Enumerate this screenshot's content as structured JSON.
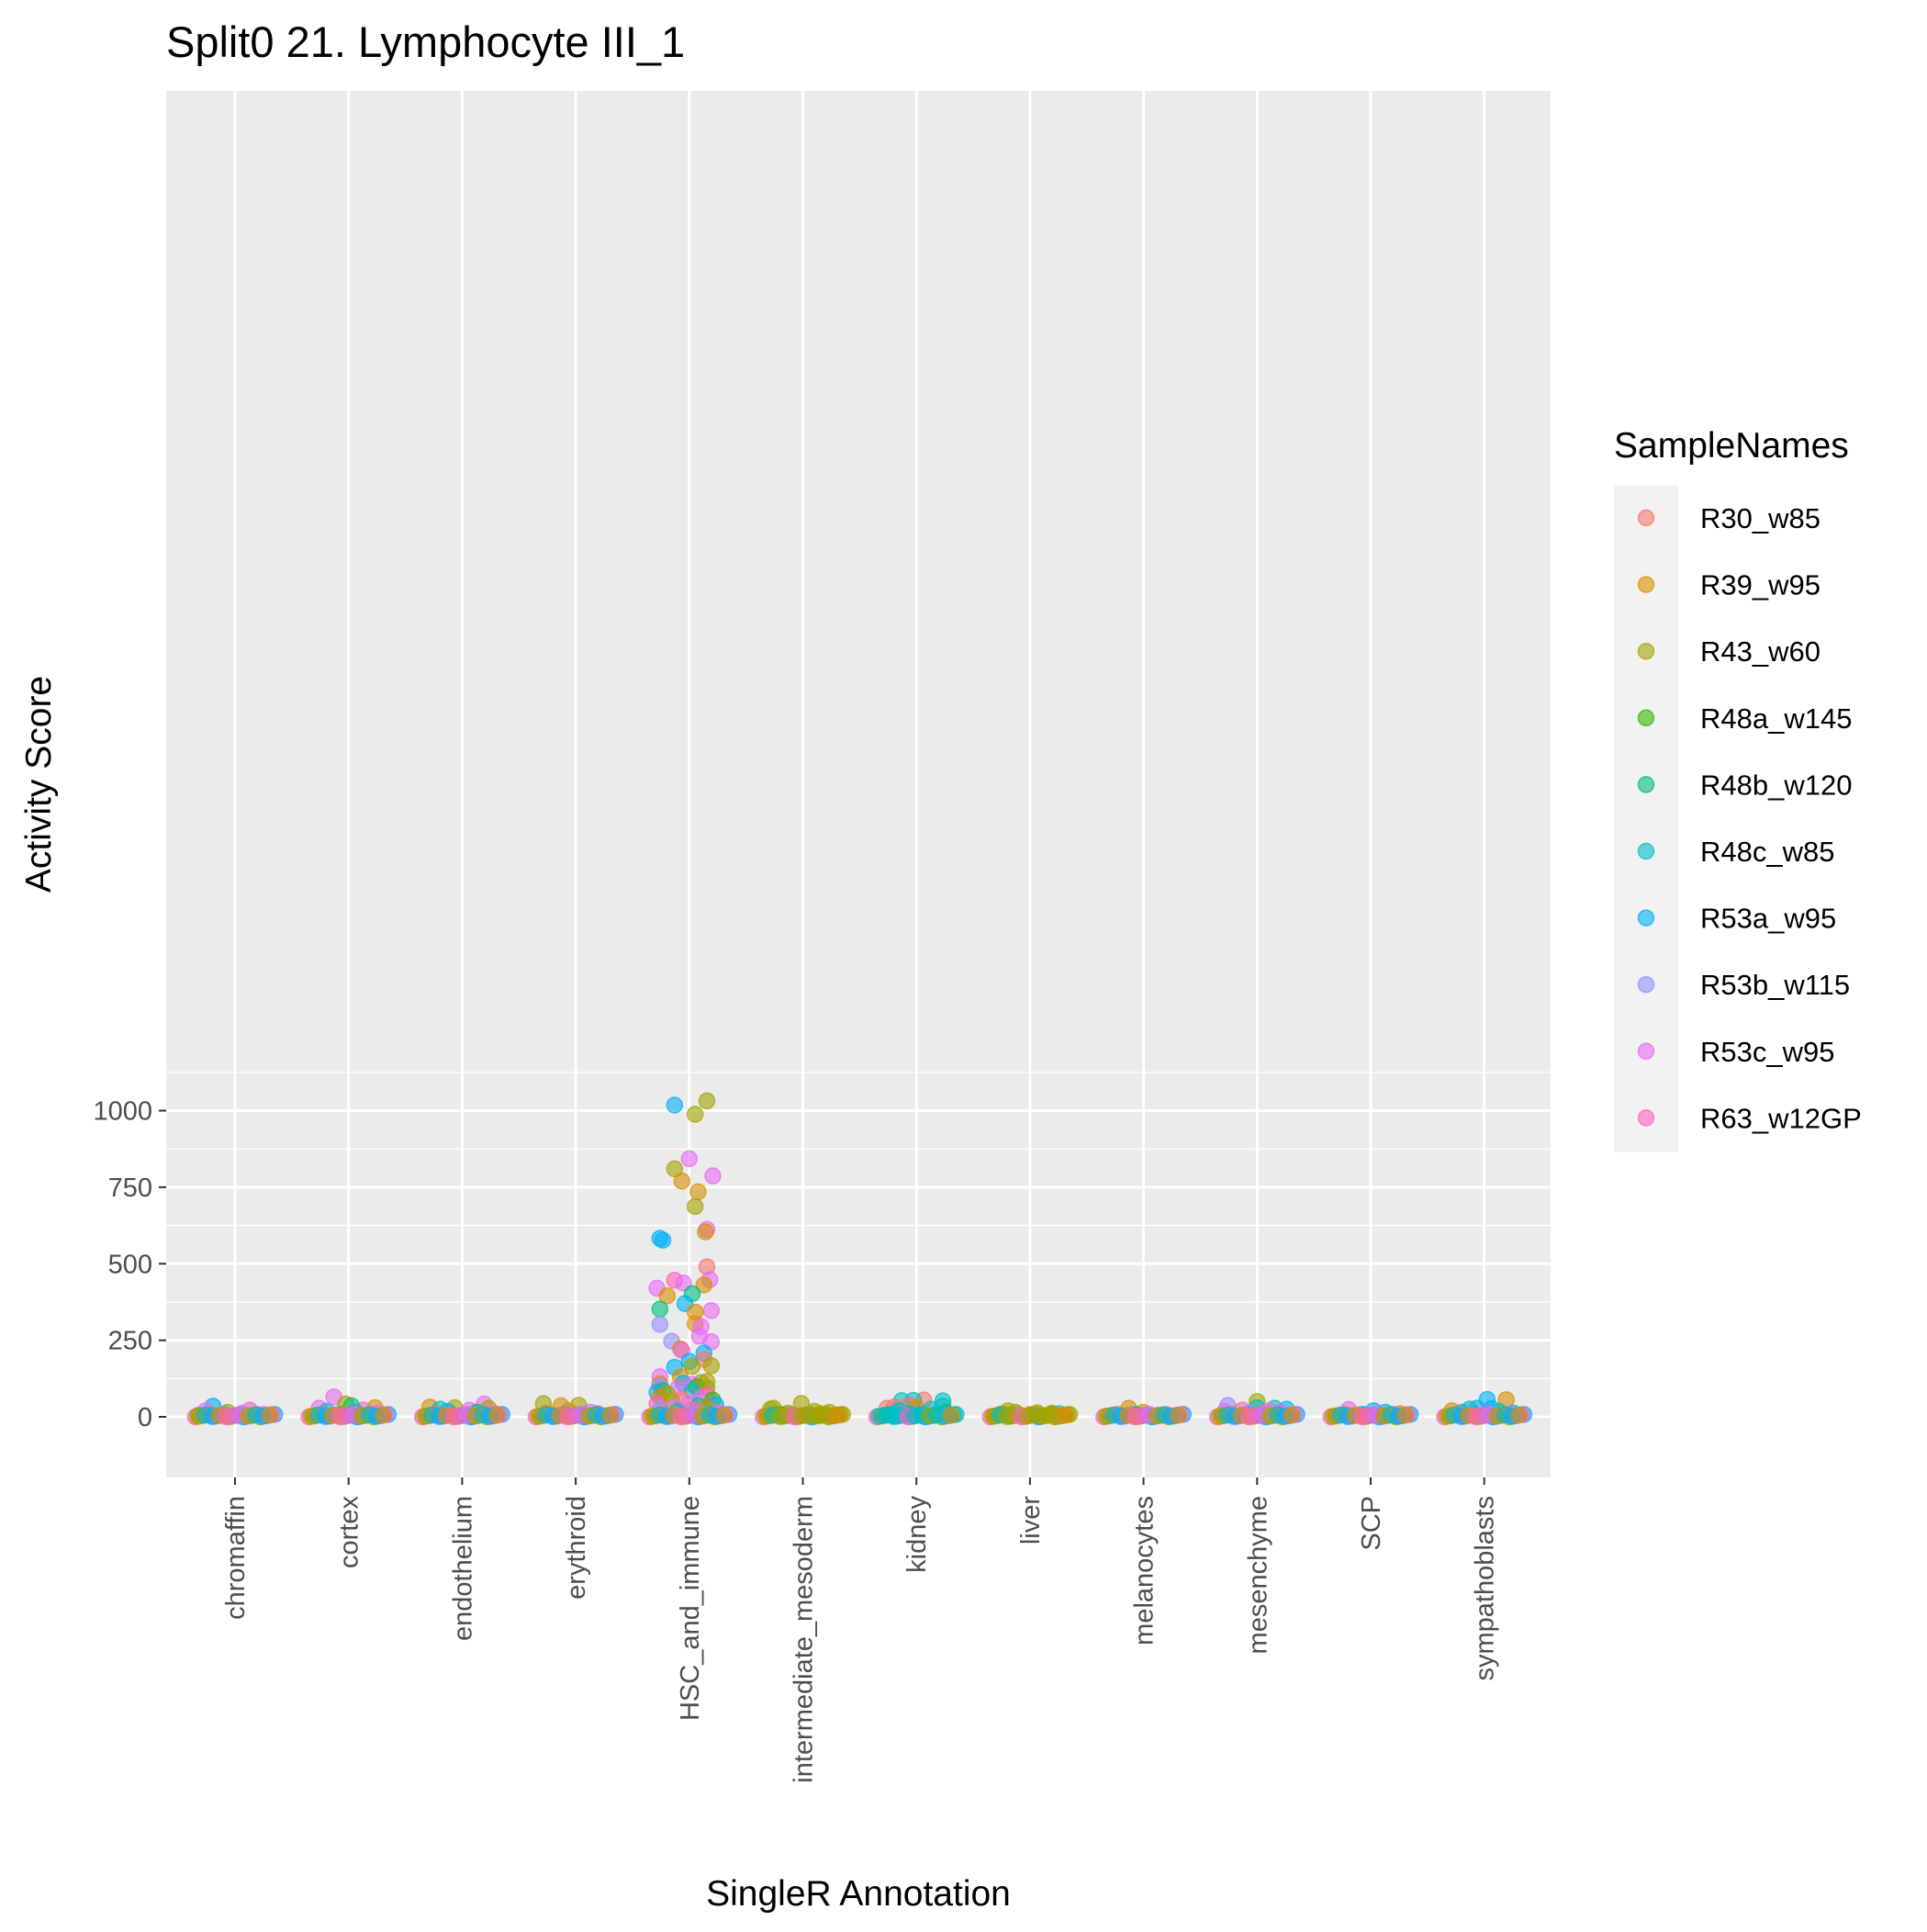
{
  "chart_data": {
    "type": "scatter",
    "subtype": "jitter-strip over boxplot",
    "title": "Split0 21. Lymphocyte III_1",
    "xlabel": "SingleR Annotation",
    "ylabel": "Activity Score",
    "ylim": [
      -50,
      1080
    ],
    "yticks": [
      0,
      250,
      500,
      750,
      1000
    ],
    "ytick_labels": [
      "0",
      "250",
      "500",
      "750",
      "1000"
    ],
    "grid": true,
    "background": "#ebebeb",
    "categories": [
      "chromaffin",
      "cortex",
      "endothelium",
      "erythroid",
      "HSC_and_immune",
      "intermediate_mesoderm",
      "kidney",
      "liver",
      "melanocytes",
      "mesenchyme",
      "SCP",
      "sympathoblasts"
    ],
    "legend": {
      "title": "SampleNames",
      "placement": "right",
      "entries": [
        {
          "name": "R30_w85",
          "color": "#F8766D"
        },
        {
          "name": "R39_w95",
          "color": "#D89000"
        },
        {
          "name": "R43_w60",
          "color": "#A3A500"
        },
        {
          "name": "R48a_w145",
          "color": "#39B600"
        },
        {
          "name": "R48b_w120",
          "color": "#00BF7D"
        },
        {
          "name": "R48c_w85",
          "color": "#00BFC4"
        },
        {
          "name": "R53a_w95",
          "color": "#00B0F6"
        },
        {
          "name": "R53b_w115",
          "color": "#9590FF"
        },
        {
          "name": "R53c_w95",
          "color": "#E76BF3"
        },
        {
          "name": "R63_w12GP",
          "color": "#FF62BC"
        }
      ]
    },
    "medians": [
      0,
      0,
      0,
      0,
      0,
      0,
      0,
      0,
      0,
      0,
      0,
      0
    ],
    "points": [
      {
        "cat": "chromaffin",
        "dx": -0.15,
        "y": 35,
        "s": "R53a_w95"
      },
      {
        "cat": "chromaffin",
        "dx": 0.1,
        "y": 22,
        "s": "R63_w12GP"
      },
      {
        "cat": "chromaffin",
        "dx": -0.2,
        "y": 20,
        "s": "R53c_w95"
      },
      {
        "cat": "chromaffin",
        "dx": -0.05,
        "y": 15,
        "s": "R43_w60"
      },
      {
        "cat": "chromaffin",
        "dx": 0.2,
        "y": 8,
        "s": "R53c_w95"
      },
      {
        "cat": "chromaffin",
        "dx": -0.25,
        "y": 5,
        "s": "R48c_w85"
      },
      {
        "cat": "chromaffin",
        "dx": 0.05,
        "y": 12,
        "s": "R53b_w115"
      },
      {
        "cat": "cortex",
        "dx": -0.1,
        "y": 65,
        "s": "R53c_w95"
      },
      {
        "cat": "cortex",
        "dx": -0.02,
        "y": 42,
        "s": "R43_w60"
      },
      {
        "cat": "cortex",
        "dx": 0.02,
        "y": 36,
        "s": "R48b_w120"
      },
      {
        "cat": "cortex",
        "dx": 0.18,
        "y": 30,
        "s": "R39_w95"
      },
      {
        "cat": "cortex",
        "dx": -0.2,
        "y": 28,
        "s": "R53c_w95"
      },
      {
        "cat": "cortex",
        "dx": 0.1,
        "y": 22,
        "s": "R63_w12GP"
      },
      {
        "cat": "cortex",
        "dx": -0.15,
        "y": 18,
        "s": "R53a_w95"
      },
      {
        "cat": "cortex",
        "dx": 0.05,
        "y": 15,
        "s": "R48c_w85"
      },
      {
        "cat": "cortex",
        "dx": 0.2,
        "y": 12,
        "s": "R53c_w95"
      },
      {
        "cat": "cortex",
        "dx": -0.05,
        "y": 10,
        "s": "R43_w60"
      },
      {
        "cat": "endothelium",
        "dx": 0.15,
        "y": 42,
        "s": "R53c_w95"
      },
      {
        "cat": "endothelium",
        "dx": -0.22,
        "y": 32,
        "s": "R39_w95"
      },
      {
        "cat": "endothelium",
        "dx": -0.05,
        "y": 30,
        "s": "R43_w60"
      },
      {
        "cat": "endothelium",
        "dx": 0.18,
        "y": 28,
        "s": "R43_w60"
      },
      {
        "cat": "endothelium",
        "dx": -0.15,
        "y": 25,
        "s": "R48c_w85"
      },
      {
        "cat": "endothelium",
        "dx": 0.05,
        "y": 22,
        "s": "R53c_w95"
      },
      {
        "cat": "endothelium",
        "dx": -0.1,
        "y": 18,
        "s": "R53a_w95"
      },
      {
        "cat": "endothelium",
        "dx": 0.1,
        "y": 15,
        "s": "R48b_w120"
      },
      {
        "cat": "endothelium",
        "dx": 0.22,
        "y": 10,
        "s": "R63_w12GP"
      },
      {
        "cat": "erythroid",
        "dx": -0.22,
        "y": 43,
        "s": "R43_w60"
      },
      {
        "cat": "erythroid",
        "dx": 0.02,
        "y": 38,
        "s": "R43_w60"
      },
      {
        "cat": "erythroid",
        "dx": -0.1,
        "y": 36,
        "s": "R39_w95"
      },
      {
        "cat": "erythroid",
        "dx": -0.05,
        "y": 20,
        "s": "R39_w95"
      },
      {
        "cat": "erythroid",
        "dx": 0.1,
        "y": 15,
        "s": "R53c_w95"
      },
      {
        "cat": "erythroid",
        "dx": -0.2,
        "y": 12,
        "s": "R39_w95"
      },
      {
        "cat": "erythroid",
        "dx": 0.15,
        "y": 10,
        "s": "R43_w60"
      },
      {
        "cat": "erythroid",
        "dx": 0.05,
        "y": 8,
        "s": "R48c_w85"
      },
      {
        "cat": "HSC_and_immune",
        "dx": 0.12,
        "y": 1032,
        "s": "R43_w60"
      },
      {
        "cat": "HSC_and_immune",
        "dx": -0.1,
        "y": 1018,
        "s": "R53a_w95"
      },
      {
        "cat": "HSC_and_immune",
        "dx": 0.04,
        "y": 988,
        "s": "R43_w60"
      },
      {
        "cat": "HSC_and_immune",
        "dx": 0.0,
        "y": 843,
        "s": "R53c_w95"
      },
      {
        "cat": "HSC_and_immune",
        "dx": -0.1,
        "y": 810,
        "s": "R43_w60"
      },
      {
        "cat": "HSC_and_immune",
        "dx": 0.16,
        "y": 787,
        "s": "R53c_w95"
      },
      {
        "cat": "HSC_and_immune",
        "dx": -0.05,
        "y": 770,
        "s": "R39_w95"
      },
      {
        "cat": "HSC_and_immune",
        "dx": 0.06,
        "y": 735,
        "s": "R39_w95"
      },
      {
        "cat": "HSC_and_immune",
        "dx": 0.04,
        "y": 687,
        "s": "R43_w60"
      },
      {
        "cat": "HSC_and_immune",
        "dx": 0.12,
        "y": 612,
        "s": "R53c_w95"
      },
      {
        "cat": "HSC_and_immune",
        "dx": 0.11,
        "y": 604,
        "s": "R39_w95"
      },
      {
        "cat": "HSC_and_immune",
        "dx": -0.2,
        "y": 583,
        "s": "R53a_w95"
      },
      {
        "cat": "HSC_and_immune",
        "dx": -0.18,
        "y": 577,
        "s": "R53a_w95"
      },
      {
        "cat": "HSC_and_immune",
        "dx": 0.12,
        "y": 490,
        "s": "R30_w85"
      },
      {
        "cat": "HSC_and_immune",
        "dx": 0.14,
        "y": 448,
        "s": "R53c_w95"
      },
      {
        "cat": "HSC_and_immune",
        "dx": -0.1,
        "y": 446,
        "s": "R63_w12GP"
      },
      {
        "cat": "HSC_and_immune",
        "dx": -0.04,
        "y": 437,
        "s": "R53c_w95"
      },
      {
        "cat": "HSC_and_immune",
        "dx": 0.1,
        "y": 431,
        "s": "R39_w95"
      },
      {
        "cat": "HSC_and_immune",
        "dx": -0.22,
        "y": 420,
        "s": "R53c_w95"
      },
      {
        "cat": "HSC_and_immune",
        "dx": 0.02,
        "y": 402,
        "s": "R48b_w120"
      },
      {
        "cat": "HSC_and_immune",
        "dx": -0.15,
        "y": 395,
        "s": "R39_w95"
      },
      {
        "cat": "HSC_and_immune",
        "dx": -0.03,
        "y": 370,
        "s": "R53a_w95"
      },
      {
        "cat": "HSC_and_immune",
        "dx": -0.2,
        "y": 352,
        "s": "R48b_w120"
      },
      {
        "cat": "HSC_and_immune",
        "dx": 0.15,
        "y": 347,
        "s": "R53c_w95"
      },
      {
        "cat": "HSC_and_immune",
        "dx": 0.04,
        "y": 342,
        "s": "R39_w95"
      },
      {
        "cat": "HSC_and_immune",
        "dx": 0.04,
        "y": 304,
        "s": "R39_w95"
      },
      {
        "cat": "HSC_and_immune",
        "dx": -0.2,
        "y": 302,
        "s": "R53b_w115"
      },
      {
        "cat": "HSC_and_immune",
        "dx": 0.08,
        "y": 295,
        "s": "R53c_w95"
      },
      {
        "cat": "HSC_and_immune",
        "dx": 0.07,
        "y": 263,
        "s": "R53c_w95"
      },
      {
        "cat": "HSC_and_immune",
        "dx": -0.12,
        "y": 247,
        "s": "R53b_w115"
      },
      {
        "cat": "HSC_and_immune",
        "dx": 0.15,
        "y": 245,
        "s": "R53c_w95"
      },
      {
        "cat": "HSC_and_immune",
        "dx": -0.06,
        "y": 222,
        "s": "R39_w95"
      },
      {
        "cat": "HSC_and_immune",
        "dx": -0.05,
        "y": 217,
        "s": "R53c_w95"
      },
      {
        "cat": "HSC_and_immune",
        "dx": 0.1,
        "y": 208,
        "s": "R53a_w95"
      },
      {
        "cat": "HSC_and_immune",
        "dx": 0.1,
        "y": 188,
        "s": "R30_w85"
      },
      {
        "cat": "HSC_and_immune",
        "dx": 0.0,
        "y": 181,
        "s": "R53a_w95"
      },
      {
        "cat": "HSC_and_immune",
        "dx": 0.15,
        "y": 167,
        "s": "R43_w60"
      },
      {
        "cat": "HSC_and_immune",
        "dx": 0.02,
        "y": 165,
        "s": "R43_w60"
      },
      {
        "cat": "HSC_and_immune",
        "dx": -0.1,
        "y": 162,
        "s": "R53a_w95"
      },
      {
        "cat": "HSC_and_immune",
        "dx": -0.2,
        "y": 131,
        "s": "R53c_w95"
      },
      {
        "cat": "HSC_and_immune",
        "dx": -0.06,
        "y": 130,
        "s": "R39_w95"
      },
      {
        "cat": "HSC_and_immune",
        "dx": 0.12,
        "y": 115,
        "s": "R43_w60"
      },
      {
        "cat": "HSC_and_immune",
        "dx": 0.08,
        "y": 112,
        "s": "R43_w60"
      },
      {
        "cat": "HSC_and_immune",
        "dx": -0.04,
        "y": 110,
        "s": "R53a_w95"
      },
      {
        "cat": "HSC_and_immune",
        "dx": -0.2,
        "y": 108,
        "s": "R39_w95"
      },
      {
        "cat": "HSC_and_immune",
        "dx": 0.02,
        "y": 106,
        "s": "R53c_w95"
      },
      {
        "cat": "HSC_and_immune",
        "dx": -0.2,
        "y": 102,
        "s": "R53b_w115"
      },
      {
        "cat": "HSC_and_immune",
        "dx": 0.05,
        "y": 98,
        "s": "R48a_w145"
      },
      {
        "cat": "HSC_and_immune",
        "dx": 0.12,
        "y": 95,
        "s": "R43_w60"
      },
      {
        "cat": "HSC_and_immune",
        "dx": -0.08,
        "y": 92,
        "s": "R53c_w95"
      },
      {
        "cat": "HSC_and_immune",
        "dx": -0.18,
        "y": 85,
        "s": "R48b_w120"
      },
      {
        "cat": "HSC_and_immune",
        "dx": 0.02,
        "y": 84,
        "s": "R48c_w85"
      },
      {
        "cat": "HSC_and_immune",
        "dx": -0.22,
        "y": 80,
        "s": "R53a_w95"
      },
      {
        "cat": "HSC_and_immune",
        "dx": -0.15,
        "y": 75,
        "s": "R43_w60"
      },
      {
        "cat": "HSC_and_immune",
        "dx": 0.12,
        "y": 74,
        "s": "R63_w12GP"
      },
      {
        "cat": "HSC_and_immune",
        "dx": -0.2,
        "y": 65,
        "s": "R39_w95"
      },
      {
        "cat": "HSC_and_immune",
        "dx": 0.08,
        "y": 62,
        "s": "R53c_w95"
      },
      {
        "cat": "HSC_and_immune",
        "dx": -0.05,
        "y": 58,
        "s": "R30_w85"
      },
      {
        "cat": "HSC_and_immune",
        "dx": 0.16,
        "y": 55,
        "s": "R48a_w145"
      },
      {
        "cat": "HSC_and_immune",
        "dx": -0.12,
        "y": 50,
        "s": "R43_w60"
      },
      {
        "cat": "HSC_and_immune",
        "dx": 0.0,
        "y": 46,
        "s": "R53c_w95"
      },
      {
        "cat": "HSC_and_immune",
        "dx": -0.22,
        "y": 43,
        "s": "R63_w12GP"
      },
      {
        "cat": "HSC_and_immune",
        "dx": 0.18,
        "y": 40,
        "s": "R53a_w95"
      },
      {
        "cat": "HSC_and_immune",
        "dx": 0.06,
        "y": 36,
        "s": "R48b_w120"
      },
      {
        "cat": "HSC_and_immune",
        "dx": -0.1,
        "y": 32,
        "s": "R53c_w95"
      },
      {
        "cat": "HSC_and_immune",
        "dx": 0.12,
        "y": 28,
        "s": "R39_w95"
      },
      {
        "cat": "HSC_and_immune",
        "dx": -0.2,
        "y": 25,
        "s": "R53b_w115"
      },
      {
        "cat": "HSC_and_immune",
        "dx": 0.02,
        "y": 22,
        "s": "R63_w12GP"
      },
      {
        "cat": "HSC_and_immune",
        "dx": -0.08,
        "y": 18,
        "s": "R48c_w85"
      },
      {
        "cat": "HSC_and_immune",
        "dx": 0.2,
        "y": 14,
        "s": "R53c_w95"
      },
      {
        "cat": "intermediate_mesoderm",
        "dx": -0.01,
        "y": 44,
        "s": "R43_w60"
      },
      {
        "cat": "intermediate_mesoderm",
        "dx": -0.2,
        "y": 28,
        "s": "R43_w60"
      },
      {
        "cat": "intermediate_mesoderm",
        "dx": -0.22,
        "y": 25,
        "s": "R43_w60"
      },
      {
        "cat": "intermediate_mesoderm",
        "dx": 0.08,
        "y": 18,
        "s": "R43_w60"
      },
      {
        "cat": "intermediate_mesoderm",
        "dx": 0.18,
        "y": 15,
        "s": "R43_w60"
      },
      {
        "cat": "intermediate_mesoderm",
        "dx": -0.1,
        "y": 12,
        "s": "R43_w60"
      },
      {
        "cat": "intermediate_mesoderm",
        "dx": 0.12,
        "y": 10,
        "s": "R43_w60"
      },
      {
        "cat": "intermediate_mesoderm",
        "dx": -0.15,
        "y": 8,
        "s": "R48a_w145"
      },
      {
        "cat": "intermediate_mesoderm",
        "dx": 0.05,
        "y": 6,
        "s": "R43_w60"
      },
      {
        "cat": "kidney",
        "dx": 0.05,
        "y": 55,
        "s": "R30_w85"
      },
      {
        "cat": "kidney",
        "dx": -0.1,
        "y": 53,
        "s": "R48c_w85"
      },
      {
        "cat": "kidney",
        "dx": -0.02,
        "y": 54,
        "s": "R48c_w85"
      },
      {
        "cat": "kidney",
        "dx": 0.18,
        "y": 52,
        "s": "R48c_w85"
      },
      {
        "cat": "kidney",
        "dx": -0.05,
        "y": 38,
        "s": "R30_w85"
      },
      {
        "cat": "kidney",
        "dx": -0.15,
        "y": 33,
        "s": "R30_w85"
      },
      {
        "cat": "kidney",
        "dx": 0.0,
        "y": 30,
        "s": "R39_w95"
      },
      {
        "cat": "kidney",
        "dx": -0.2,
        "y": 28,
        "s": "R30_w85"
      },
      {
        "cat": "kidney",
        "dx": 0.18,
        "y": 35,
        "s": "R48c_w85"
      },
      {
        "cat": "kidney",
        "dx": 0.1,
        "y": 25,
        "s": "R48c_w85"
      },
      {
        "cat": "kidney",
        "dx": -0.12,
        "y": 20,
        "s": "R48c_w85"
      },
      {
        "cat": "kidney",
        "dx": 0.2,
        "y": 15,
        "s": "R48b_w120"
      },
      {
        "cat": "kidney",
        "dx": -0.05,
        "y": 10,
        "s": "R48c_w85"
      },
      {
        "cat": "liver",
        "dx": -0.15,
        "y": 20,
        "s": "R43_w60"
      },
      {
        "cat": "liver",
        "dx": -0.1,
        "y": 15,
        "s": "R43_w60"
      },
      {
        "cat": "liver",
        "dx": 0.05,
        "y": 13,
        "s": "R43_w60"
      },
      {
        "cat": "liver",
        "dx": 0.15,
        "y": 12,
        "s": "R43_w60"
      },
      {
        "cat": "liver",
        "dx": 0.2,
        "y": 10,
        "s": "R48c_w85"
      },
      {
        "cat": "liver",
        "dx": -0.2,
        "y": 9,
        "s": "R43_w60"
      },
      {
        "cat": "liver",
        "dx": 0.0,
        "y": 8,
        "s": "R43_w60"
      },
      {
        "cat": "melanocytes",
        "dx": -0.1,
        "y": 28,
        "s": "R39_w95"
      },
      {
        "cat": "melanocytes",
        "dx": 0.0,
        "y": 15,
        "s": "R39_w95"
      },
      {
        "cat": "melanocytes",
        "dx": -0.05,
        "y": 8,
        "s": "R48a_w145"
      },
      {
        "cat": "melanocytes",
        "dx": 0.1,
        "y": 5,
        "s": "R48b_w120"
      },
      {
        "cat": "melanocytes",
        "dx": 0.2,
        "y": 3,
        "s": "R39_w95"
      },
      {
        "cat": "mesenchyme",
        "dx": 0.0,
        "y": 50,
        "s": "R43_w60"
      },
      {
        "cat": "mesenchyme",
        "dx": -0.2,
        "y": 37,
        "s": "R53b_w115"
      },
      {
        "cat": "mesenchyme",
        "dx": 0.0,
        "y": 30,
        "s": "R48c_w85"
      },
      {
        "cat": "mesenchyme",
        "dx": 0.12,
        "y": 28,
        "s": "R48c_w85"
      },
      {
        "cat": "mesenchyme",
        "dx": 0.2,
        "y": 25,
        "s": "R53a_w95"
      },
      {
        "cat": "mesenchyme",
        "dx": -0.1,
        "y": 22,
        "s": "R63_w12GP"
      },
      {
        "cat": "mesenchyme",
        "dx": 0.08,
        "y": 20,
        "s": "R53c_w95"
      },
      {
        "cat": "mesenchyme",
        "dx": -0.22,
        "y": 18,
        "s": "R53c_w95"
      },
      {
        "cat": "mesenchyme",
        "dx": 0.16,
        "y": 15,
        "s": "R53c_w95"
      },
      {
        "cat": "mesenchyme",
        "dx": -0.05,
        "y": 12,
        "s": "R53b_w115"
      },
      {
        "cat": "mesenchyme",
        "dx": 0.05,
        "y": 10,
        "s": "R30_w85"
      },
      {
        "cat": "SCP",
        "dx": -0.15,
        "y": 24,
        "s": "R53c_w95"
      },
      {
        "cat": "SCP",
        "dx": 0.02,
        "y": 20,
        "s": "R53a_w95"
      },
      {
        "cat": "SCP",
        "dx": 0.1,
        "y": 15,
        "s": "R53a_w95"
      },
      {
        "cat": "SCP",
        "dx": 0.2,
        "y": 10,
        "s": "R39_w95"
      },
      {
        "cat": "SCP",
        "dx": -0.05,
        "y": 8,
        "s": "R53a_w95"
      },
      {
        "cat": "SCP",
        "dx": 0.15,
        "y": 5,
        "s": "R53c_w95"
      },
      {
        "cat": "sympathoblasts",
        "dx": 0.15,
        "y": 56,
        "s": "R39_w95"
      },
      {
        "cat": "sympathoblasts",
        "dx": 0.02,
        "y": 57,
        "s": "R53a_w95"
      },
      {
        "cat": "sympathoblasts",
        "dx": -0.05,
        "y": 28,
        "s": "R53a_w95"
      },
      {
        "cat": "sympathoblasts",
        "dx": 0.05,
        "y": 27,
        "s": "R53a_w95"
      },
      {
        "cat": "sympathoblasts",
        "dx": -0.1,
        "y": 25,
        "s": "R48c_w85"
      },
      {
        "cat": "sympathoblasts",
        "dx": -0.22,
        "y": 20,
        "s": "R39_w95"
      },
      {
        "cat": "sympathoblasts",
        "dx": 0.1,
        "y": 18,
        "s": "R48c_w85"
      },
      {
        "cat": "sympathoblasts",
        "dx": -0.15,
        "y": 15,
        "s": "R53a_w95"
      },
      {
        "cat": "sympathoblasts",
        "dx": 0.2,
        "y": 12,
        "s": "R53a_w95"
      },
      {
        "cat": "sympathoblasts",
        "dx": 0.0,
        "y": 8,
        "s": "R53c_w95"
      }
    ]
  }
}
